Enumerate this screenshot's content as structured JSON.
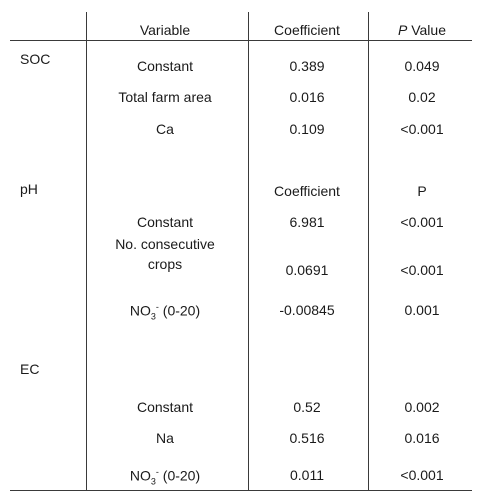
{
  "header": {
    "variable": "Variable",
    "coefficient": "Coefficient",
    "p_value_italic": "P",
    "p_value_rest": " Value"
  },
  "soc": {
    "label": "SOC",
    "rows": [
      {
        "variable": "Constant",
        "coefficient": "0.389",
        "p": "0.049"
      },
      {
        "variable": "Total farm area",
        "coefficient": "0.016",
        "p": "0.02"
      },
      {
        "variable": "Ca",
        "coefficient": "0.109",
        "p": "<0.001"
      }
    ]
  },
  "ph": {
    "label": "pH",
    "coef_header": "Coefficient",
    "p_header": "P",
    "rows": [
      {
        "variable": "Constant",
        "coefficient": "6.981",
        "p": "<0.001"
      },
      {
        "variable": "No. consecutive crops",
        "coefficient": "0.0691",
        "p": "<0.001"
      },
      {
        "variable_base": "NO",
        "variable_sub": "3",
        "variable_sup": "-",
        "variable_suffix": " (0-20)",
        "coefficient": "-0.00845",
        "p": "0.001"
      }
    ]
  },
  "ec": {
    "label": "EC",
    "rows": [
      {
        "variable": "Constant",
        "coefficient": "0.52",
        "p": "0.002"
      },
      {
        "variable": "Na",
        "coefficient": "0.516",
        "p": "0.016"
      },
      {
        "variable_base": "NO",
        "variable_sub": "3",
        "variable_sup": "-",
        "variable_suffix": " (0-20)",
        "coefficient": "0.011",
        "p": "<0.001"
      }
    ]
  }
}
